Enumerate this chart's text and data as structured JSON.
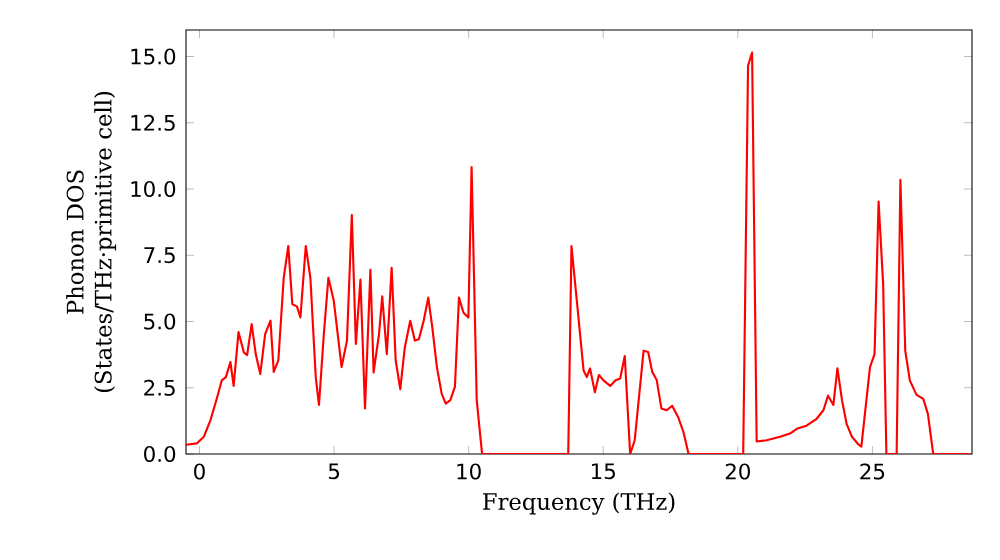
{
  "chart_data": {
    "type": "line",
    "xlabel": "Frequency (THz)",
    "ylabel": "Phonon DOS\n(States/THz·primitive cell)",
    "x": [
      -0.5,
      -0.1,
      0.16,
      0.41,
      0.66,
      0.83,
      0.98,
      1.15,
      1.27,
      1.45,
      1.65,
      1.77,
      1.94,
      2.09,
      2.26,
      2.44,
      2.64,
      2.76,
      2.93,
      3.13,
      3.3,
      3.45,
      3.62,
      3.75,
      3.95,
      4.12,
      4.32,
      4.44,
      4.62,
      4.79,
      4.99,
      5.28,
      5.48,
      5.66,
      5.81,
      5.98,
      6.15,
      6.35,
      6.47,
      6.67,
      6.79,
      6.96,
      7.14,
      7.29,
      7.46,
      7.63,
      7.83,
      8.0,
      8.15,
      8.33,
      8.5,
      8.65,
      8.82,
      9.0,
      9.15,
      9.32,
      9.49,
      9.64,
      9.81,
      9.99,
      10.11,
      10.3,
      10.5,
      13.7,
      13.82,
      14.02,
      14.27,
      14.39,
      14.51,
      14.69,
      14.84,
      15.01,
      15.26,
      15.46,
      15.63,
      15.8,
      16.0,
      16.17,
      16.5,
      16.67,
      16.82,
      16.99,
      17.16,
      17.36,
      17.56,
      17.78,
      17.98,
      18.17,
      20.2,
      20.38,
      20.53,
      20.7,
      21.07,
      21.57,
      21.94,
      22.19,
      22.55,
      22.93,
      23.18,
      23.35,
      23.55,
      23.7,
      23.87,
      24.04,
      24.24,
      24.49,
      24.59,
      24.91,
      25.08,
      25.23,
      25.4,
      25.52,
      25.9,
      26.04,
      26.22,
      26.39,
      26.64,
      26.89,
      27.06,
      27.26,
      28.6
    ],
    "values": [
      0.35,
      0.4,
      0.65,
      1.28,
      2.15,
      2.78,
      2.9,
      3.47,
      2.57,
      4.6,
      3.83,
      3.73,
      4.9,
      3.77,
      3.02,
      4.52,
      5.03,
      3.1,
      3.53,
      6.65,
      7.85,
      5.65,
      5.57,
      5.15,
      7.85,
      6.65,
      2.9,
      1.85,
      4.52,
      6.65,
      5.78,
      3.28,
      4.28,
      9.02,
      4.15,
      6.58,
      1.72,
      6.95,
      3.08,
      4.52,
      5.95,
      3.77,
      7.03,
      3.53,
      2.45,
      4.03,
      5.03,
      4.28,
      4.33,
      5.03,
      5.9,
      4.78,
      3.28,
      2.27,
      1.9,
      2.03,
      2.53,
      5.9,
      5.33,
      5.15,
      10.83,
      2.03,
      0,
      0,
      7.85,
      5.78,
      3.15,
      2.9,
      3.23,
      2.33,
      2.98,
      2.78,
      2.57,
      2.78,
      2.85,
      3.7,
      0,
      0.52,
      3.9,
      3.85,
      3.1,
      2.78,
      1.72,
      1.65,
      1.82,
      1.4,
      0.83,
      0,
      0,
      14.65,
      15.15,
      0.47,
      0.52,
      0.65,
      0.77,
      0.95,
      1.07,
      1.33,
      1.65,
      2.2,
      1.85,
      3.23,
      2.03,
      1.15,
      0.65,
      0.35,
      0.28,
      3.28,
      3.77,
      9.53,
      6.4,
      0,
      0,
      10.35,
      3.9,
      2.78,
      2.23,
      2.08,
      1.52,
      0,
      0
    ],
    "color": "#ff0000",
    "xlim": [
      -0.5,
      28.7
    ],
    "ylim": [
      0,
      16
    ],
    "xticks": [
      0,
      5,
      10,
      15,
      20,
      25
    ],
    "yticks": [
      {
        "value": 0,
        "label": "0.0"
      },
      {
        "value": 2.5,
        "label": "2.5"
      },
      {
        "value": 5,
        "label": "5.0"
      },
      {
        "value": 7.5,
        "label": "7.5"
      },
      {
        "value": 10,
        "label": "10.0"
      },
      {
        "value": 12.5,
        "label": "12.5"
      },
      {
        "value": 15,
        "label": "15.0"
      }
    ]
  }
}
